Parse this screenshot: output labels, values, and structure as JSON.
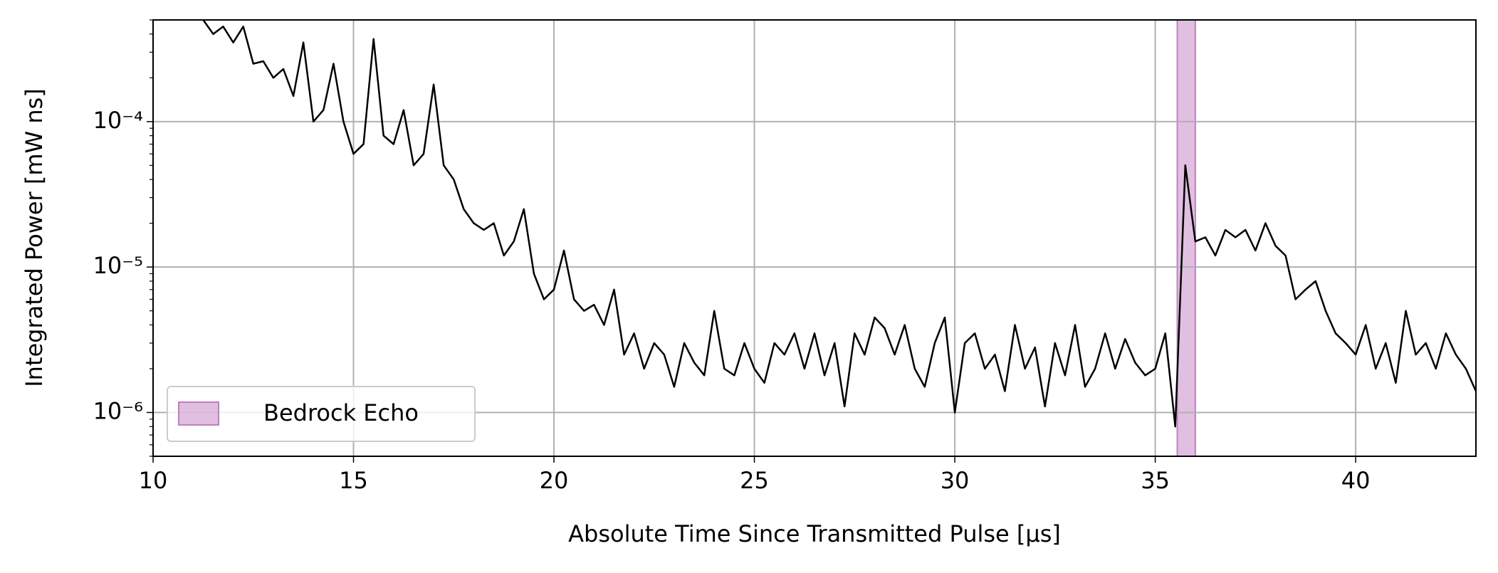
{
  "chart_data": {
    "type": "line",
    "xlabel": "Absolute Time Since Transmitted Pulse [μs]",
    "ylabel": "Integrated Power [mW ns]",
    "log_y": true,
    "grid": true,
    "legend_loc": "lower-left",
    "xlim": [
      10,
      43
    ],
    "ylim": [
      5e-07,
      0.0005
    ],
    "xticks": [
      10,
      15,
      20,
      25,
      30,
      35,
      40
    ],
    "yticks": [
      {
        "value": 1e-06,
        "label": "10⁻⁶"
      },
      {
        "value": 1e-05,
        "label": "10⁻⁵"
      },
      {
        "value": 0.0001,
        "label": "10⁻⁴"
      }
    ],
    "spans": [
      {
        "label": "Bedrock Echo",
        "xmin": 35.55,
        "xmax": 36.0,
        "color": "#c27fc4"
      }
    ],
    "x": [
      11.25,
      11.5,
      11.75,
      12,
      12.25,
      12.5,
      12.75,
      13,
      13.25,
      13.5,
      13.75,
      14,
      14.25,
      14.5,
      14.75,
      15,
      15.25,
      15.5,
      15.75,
      16,
      16.25,
      16.5,
      16.75,
      17,
      17.25,
      17.5,
      17.75,
      18,
      18.25,
      18.5,
      18.75,
      19,
      19.25,
      19.5,
      19.75,
      20,
      20.25,
      20.5,
      20.75,
      21,
      21.25,
      21.5,
      21.75,
      22,
      22.25,
      22.5,
      22.75,
      23,
      23.25,
      23.5,
      23.75,
      24,
      24.25,
      24.5,
      24.75,
      25,
      25.25,
      25.5,
      25.75,
      26,
      26.25,
      26.5,
      26.75,
      27,
      27.25,
      27.5,
      27.75,
      28,
      28.25,
      28.5,
      28.75,
      29,
      29.25,
      29.5,
      29.75,
      30,
      30.25,
      30.5,
      30.75,
      31,
      31.25,
      31.5,
      31.75,
      32,
      32.25,
      32.5,
      32.75,
      33,
      33.25,
      33.5,
      33.75,
      34,
      34.25,
      34.5,
      34.75,
      35,
      35.25,
      35.5,
      35.75,
      36,
      36.25,
      36.5,
      36.75,
      37,
      37.25,
      37.5,
      37.75,
      38,
      38.25,
      38.5,
      38.75,
      39,
      39.25,
      39.5,
      39.75,
      40,
      40.25,
      40.5,
      40.75,
      41,
      41.25,
      41.5,
      41.75,
      42,
      42.25,
      42.5,
      42.75,
      43
    ],
    "series": [
      {
        "color": "#000000",
        "values": [
          0.0005,
          0.0004,
          0.00045,
          0.00035,
          0.00045,
          0.00025,
          0.00026,
          0.0002,
          0.00023,
          0.00015,
          0.00035,
          0.0001,
          0.00012,
          0.00025,
          0.0001,
          6e-05,
          7e-05,
          0.00037,
          8e-05,
          7e-05,
          0.00012,
          5e-05,
          6e-05,
          0.00018,
          5e-05,
          4e-05,
          2.5e-05,
          2e-05,
          1.8e-05,
          2e-05,
          1.2e-05,
          1.5e-05,
          2.5e-05,
          9e-06,
          6e-06,
          7e-06,
          1.3e-05,
          6e-06,
          5e-06,
          5.5e-06,
          4e-06,
          7e-06,
          2.5e-06,
          3.5e-06,
          2e-06,
          3e-06,
          2.5e-06,
          1.5e-06,
          3e-06,
          2.2e-06,
          1.8e-06,
          5e-06,
          2e-06,
          1.8e-06,
          3e-06,
          2e-06,
          1.6e-06,
          3e-06,
          2.5e-06,
          3.5e-06,
          2e-06,
          3.5e-06,
          1.8e-06,
          3e-06,
          1.1e-06,
          3.5e-06,
          2.5e-06,
          4.5e-06,
          3.8e-06,
          2.5e-06,
          4e-06,
          2e-06,
          1.5e-06,
          3e-06,
          4.5e-06,
          1e-06,
          3e-06,
          3.5e-06,
          2e-06,
          2.5e-06,
          1.4e-06,
          4e-06,
          2e-06,
          2.8e-06,
          1.1e-06,
          3e-06,
          1.8e-06,
          4e-06,
          1.5e-06,
          2e-06,
          3.5e-06,
          2e-06,
          3.2e-06,
          2.2e-06,
          1.8e-06,
          2e-06,
          3.5e-06,
          8e-07,
          5e-05,
          1.5e-05,
          1.6e-05,
          1.2e-05,
          1.8e-05,
          1.6e-05,
          1.8e-05,
          1.3e-05,
          2e-05,
          1.4e-05,
          1.2e-05,
          6e-06,
          7e-06,
          8e-06,
          5e-06,
          3.5e-06,
          3e-06,
          2.5e-06,
          4e-06,
          2e-06,
          3e-06,
          1.6e-06,
          5e-06,
          2.5e-06,
          3e-06,
          2e-06,
          3.5e-06,
          2.5e-06,
          2e-06,
          1.4e-06
        ]
      }
    ]
  }
}
